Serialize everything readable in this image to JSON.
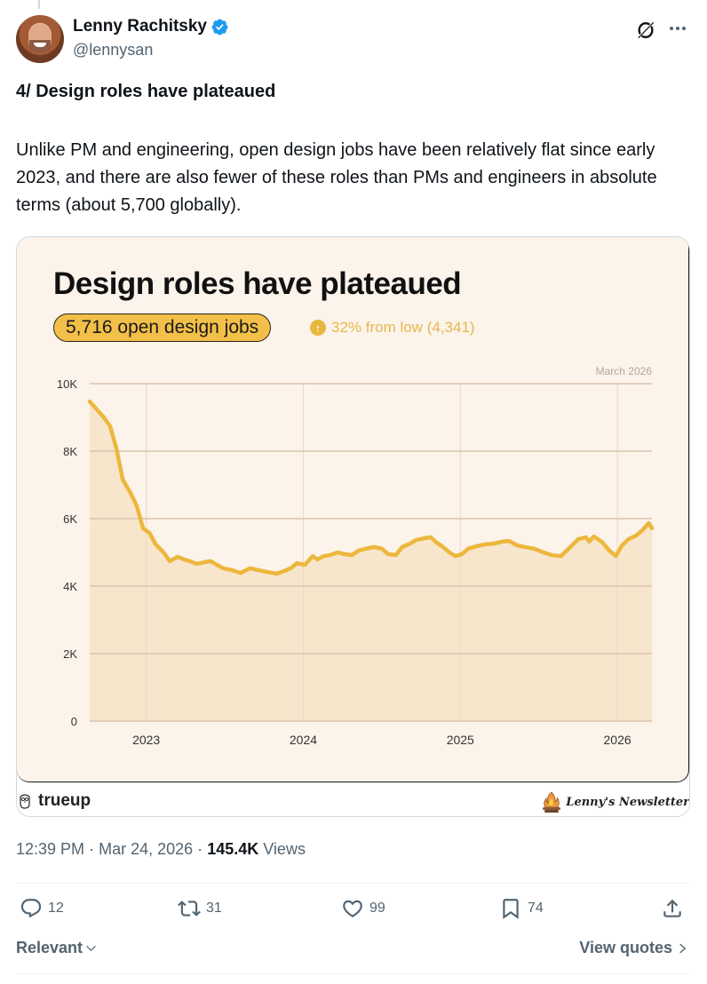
{
  "author": {
    "display_name": "Lenny Rachitsky",
    "handle": "@lennysan",
    "verified": true,
    "verified_color": "#1d9bf0"
  },
  "header_icons": [
    "grok-icon",
    "more-options-icon"
  ],
  "tweet": {
    "heading": "4/ Design roles have plateaued",
    "body": "Unlike PM and engineering, open design jobs have been relatively flat since early 2023, and there are also fewer of these roles than PMs and engineers in absolute terms (about 5,700 globally)."
  },
  "media_card": {
    "title": "Design roles have plateaued",
    "pill_label": "5,716 open design jobs",
    "delta_label": "32% from low (4,341)",
    "delta_icon": "arrow-up-icon",
    "accent_color": "#f2bf48",
    "line_color": "#ecb73c",
    "fill_color": "#f8e6cc",
    "background_color": "#fcf3ea",
    "footer_left": "trueup",
    "footer_right": "Lenny's Newsletter"
  },
  "chart_data": {
    "type": "area",
    "title": "Design roles have plateaued",
    "annotation": "March 2026",
    "xlabel": "",
    "ylabel": "",
    "ylim": [
      0,
      10000
    ],
    "xlim": [
      2022.64,
      2026.22
    ],
    "y_ticks": [
      0,
      2000,
      4000,
      6000,
      8000,
      10000
    ],
    "y_tick_labels": [
      "0",
      "2K",
      "4K",
      "6K",
      "8K",
      "10K"
    ],
    "x_ticks": [
      2023,
      2024,
      2025,
      2026
    ],
    "x_tick_labels": [
      "2023",
      "2024",
      "2025",
      "2026"
    ],
    "grid": true,
    "legend": "none",
    "series": [
      {
        "name": "Open design jobs",
        "x": [
          2022.64,
          2022.69,
          2022.73,
          2022.77,
          2022.81,
          2022.85,
          2022.9,
          2022.94,
          2022.98,
          2023.02,
          2023.06,
          2023.11,
          2023.15,
          2023.2,
          2023.24,
          2023.28,
          2023.32,
          2023.37,
          2023.41,
          2023.45,
          2023.49,
          2023.55,
          2023.6,
          2023.66,
          2023.72,
          2023.77,
          2023.83,
          2023.88,
          2023.92,
          2023.96,
          2024.01,
          2024.06,
          2024.09,
          2024.13,
          2024.17,
          2024.22,
          2024.26,
          2024.31,
          2024.35,
          2024.4,
          2024.45,
          2024.5,
          2024.54,
          2024.59,
          2024.63,
          2024.68,
          2024.72,
          2024.77,
          2024.81,
          2024.85,
          2024.89,
          2024.93,
          2024.97,
          2025.01,
          2025.05,
          2025.1,
          2025.16,
          2025.21,
          2025.27,
          2025.31,
          2025.36,
          2025.41,
          2025.47,
          2025.53,
          2025.58,
          2025.64,
          2025.69,
          2025.75,
          2025.8,
          2025.82,
          2025.85,
          2025.9,
          2025.95,
          2025.99,
          2026.03,
          2026.07,
          2026.12,
          2026.16,
          2026.2,
          2026.22
        ],
        "values": [
          9470,
          9210,
          9000,
          8740,
          8080,
          7160,
          6760,
          6370,
          5710,
          5580,
          5240,
          5000,
          4740,
          4870,
          4790,
          4740,
          4660,
          4710,
          4740,
          4630,
          4530,
          4470,
          4390,
          4530,
          4470,
          4420,
          4370,
          4450,
          4530,
          4680,
          4630,
          4890,
          4790,
          4890,
          4920,
          5000,
          4950,
          4920,
          5050,
          5110,
          5160,
          5110,
          4950,
          4920,
          5160,
          5260,
          5370,
          5420,
          5450,
          5290,
          5160,
          5000,
          4890,
          4950,
          5110,
          5180,
          5240,
          5260,
          5320,
          5340,
          5210,
          5160,
          5110,
          5000,
          4920,
          4890,
          5110,
          5390,
          5450,
          5320,
          5470,
          5320,
          5050,
          4890,
          5210,
          5390,
          5500,
          5660,
          5870,
          5716
        ]
      }
    ]
  },
  "timestamp": {
    "time": "12:39 PM",
    "separator": "·",
    "date": "Mar 24, 2026",
    "views_count": "145.4K",
    "views_label": "Views"
  },
  "actions": {
    "replies": "12",
    "reposts": "31",
    "likes": "99",
    "bookmarks": "74"
  },
  "footer": {
    "sort_label": "Relevant",
    "view_quotes_label": "View quotes"
  }
}
